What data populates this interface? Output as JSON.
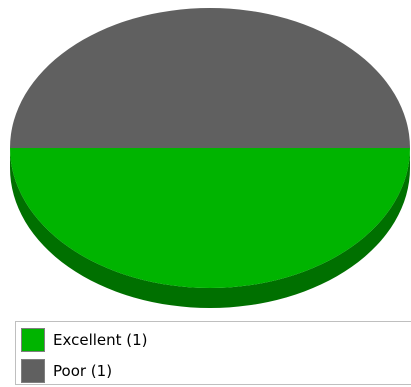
{
  "chart_data": {
    "type": "pie",
    "categories": [
      "Excellent",
      "Poor"
    ],
    "values": [
      1,
      1
    ],
    "colors": [
      "#00b400",
      "#606060"
    ],
    "style": "3d",
    "legend_position": "bottom",
    "title": ""
  },
  "legend": {
    "items": [
      {
        "label": "Excellent (1)",
        "color": "#00b400"
      },
      {
        "label": "Poor (1)",
        "color": "#606060"
      }
    ]
  }
}
